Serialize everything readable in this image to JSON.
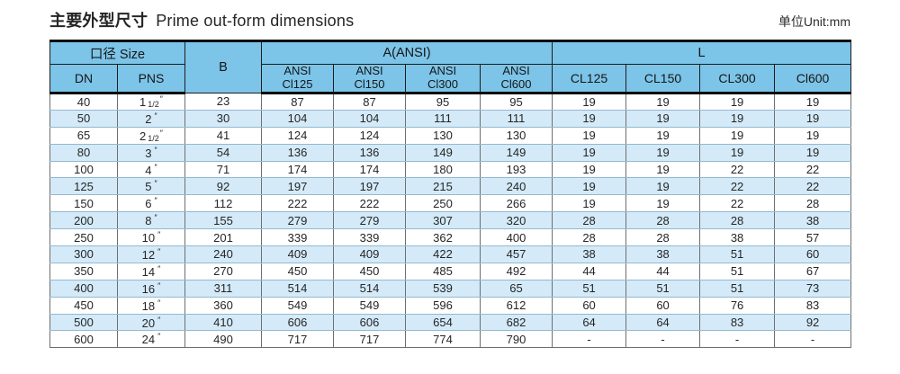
{
  "title": {
    "zh": "主要外型尺寸",
    "en": "Prime out-form dimensions"
  },
  "unit_label": "单位Unit:mm",
  "colors": {
    "header_bg": "#7cc4e8",
    "stripe_bg": "#d4eaf8",
    "border_heavy": "#0d0d0d",
    "row_line": "#93b9cf"
  },
  "table": {
    "group_headers": {
      "size": "口径 Size",
      "b": "B",
      "a_ansi": "A(ANSI)",
      "l": "L"
    },
    "sub_headers": {
      "dn": "DN",
      "pns": "PNS",
      "a_cols": [
        {
          "l1": "ANSI",
          "l2": "Cl125"
        },
        {
          "l1": "ANSI",
          "l2": "Cl150"
        },
        {
          "l1": "ANSI",
          "l2": "Cl300"
        },
        {
          "l1": "ANSI",
          "l2": "Cl600"
        }
      ],
      "l_cols": [
        "CL125",
        "CL150",
        "CL300",
        "Cl600"
      ]
    },
    "rows": [
      {
        "dn": "40",
        "pns": {
          "main": "1",
          "frac": "1/2",
          "unit": "″"
        },
        "b": "23",
        "a": [
          "87",
          "87",
          "95",
          "95"
        ],
        "l": [
          "19",
          "19",
          "19",
          "19"
        ]
      },
      {
        "dn": "50",
        "pns": {
          "main": "2",
          "frac": "",
          "unit": "″"
        },
        "b": "30",
        "a": [
          "104",
          "104",
          "111",
          "111"
        ],
        "l": [
          "19",
          "19",
          "19",
          "19"
        ]
      },
      {
        "dn": "65",
        "pns": {
          "main": "2",
          "frac": "1/2",
          "unit": "″"
        },
        "b": "41",
        "a": [
          "124",
          "124",
          "130",
          "130"
        ],
        "l": [
          "19",
          "19",
          "19",
          "19"
        ]
      },
      {
        "dn": "80",
        "pns": {
          "main": "3",
          "frac": "",
          "unit": "″"
        },
        "b": "54",
        "a": [
          "136",
          "136",
          "149",
          "149"
        ],
        "l": [
          "19",
          "19",
          "19",
          "19"
        ]
      },
      {
        "dn": "100",
        "pns": {
          "main": "4",
          "frac": "",
          "unit": "″"
        },
        "b": "71",
        "a": [
          "174",
          "174",
          "180",
          "193"
        ],
        "l": [
          "19",
          "19",
          "22",
          "22"
        ]
      },
      {
        "dn": "125",
        "pns": {
          "main": "5",
          "frac": "",
          "unit": "″"
        },
        "b": "92",
        "a": [
          "197",
          "197",
          "215",
          "240"
        ],
        "l": [
          "19",
          "19",
          "22",
          "22"
        ]
      },
      {
        "dn": "150",
        "pns": {
          "main": "6",
          "frac": "",
          "unit": "″"
        },
        "b": "112",
        "a": [
          "222",
          "222",
          "250",
          "266"
        ],
        "l": [
          "19",
          "19",
          "22",
          "28"
        ]
      },
      {
        "dn": "200",
        "pns": {
          "main": "8",
          "frac": "",
          "unit": "″"
        },
        "b": "155",
        "a": [
          "279",
          "279",
          "307",
          "320"
        ],
        "l": [
          "28",
          "28",
          "28",
          "38"
        ]
      },
      {
        "dn": "250",
        "pns": {
          "main": "10",
          "frac": "",
          "unit": "″"
        },
        "b": "201",
        "a": [
          "339",
          "339",
          "362",
          "400"
        ],
        "l": [
          "28",
          "28",
          "38",
          "57"
        ]
      },
      {
        "dn": "300",
        "pns": {
          "main": "12",
          "frac": "",
          "unit": "″"
        },
        "b": "240",
        "a": [
          "409",
          "409",
          "422",
          "457"
        ],
        "l": [
          "38",
          "38",
          "51",
          "60"
        ]
      },
      {
        "dn": "350",
        "pns": {
          "main": "14",
          "frac": "",
          "unit": "″"
        },
        "b": "270",
        "a": [
          "450",
          "450",
          "485",
          "492"
        ],
        "l": [
          "44",
          "44",
          "51",
          "67"
        ]
      },
      {
        "dn": "400",
        "pns": {
          "main": "16",
          "frac": "",
          "unit": "″"
        },
        "b": "311",
        "a": [
          "514",
          "514",
          "539",
          "65"
        ],
        "l": [
          "51",
          "51",
          "51",
          "73"
        ]
      },
      {
        "dn": "450",
        "pns": {
          "main": "18",
          "frac": "",
          "unit": "″"
        },
        "b": "360",
        "a": [
          "549",
          "549",
          "596",
          "612"
        ],
        "l": [
          "60",
          "60",
          "76",
          "83"
        ]
      },
      {
        "dn": "500",
        "pns": {
          "main": "20",
          "frac": "",
          "unit": "″"
        },
        "b": "410",
        "a": [
          "606",
          "606",
          "654",
          "682"
        ],
        "l": [
          "64",
          "64",
          "83",
          "92"
        ]
      },
      {
        "dn": "600",
        "pns": {
          "main": "24",
          "frac": "",
          "unit": "″"
        },
        "b": "490",
        "a": [
          "717",
          "717",
          "774",
          "790"
        ],
        "l": [
          "-",
          "-",
          "-",
          "-"
        ]
      }
    ]
  }
}
